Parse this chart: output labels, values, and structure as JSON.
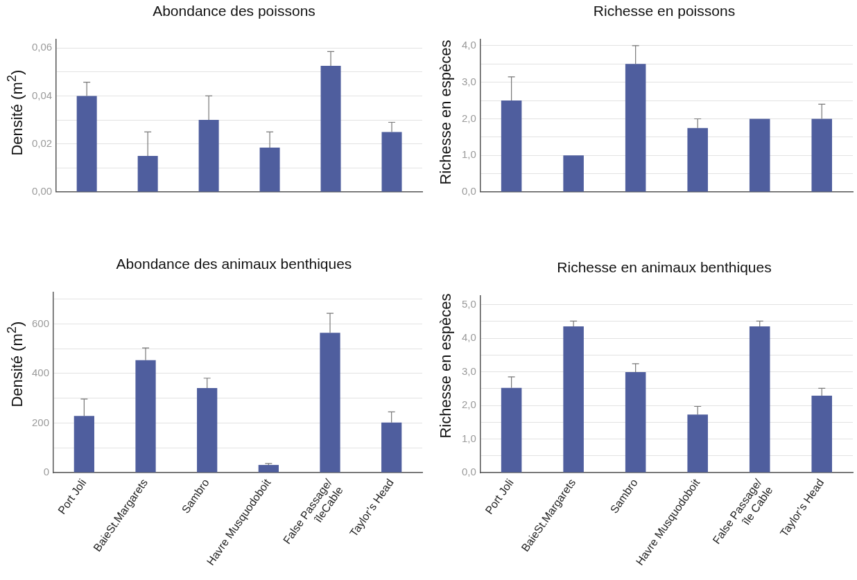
{
  "chart_data": [
    {
      "type": "bar",
      "title": "Abondance des poissons",
      "ylabel": "Densité (m$^{2}$)",
      "categories": [
        null,
        null,
        null,
        null,
        null,
        null
      ],
      "color": "#4f5e9e",
      "values": [
        0.04,
        0.015,
        0.03,
        0.0185,
        0.0525,
        0.025
      ],
      "errors": [
        [
          0.04,
          0.0457
        ],
        [
          0.015,
          0.025
        ],
        [
          0.03,
          0.04
        ],
        [
          0.0185,
          0.025
        ],
        [
          0.0525,
          0.0585
        ],
        [
          0.025,
          0.029
        ]
      ],
      "ylim": [
        0,
        0.0635
      ],
      "yticks": [
        {
          "value": 0,
          "label": "0,00"
        },
        {
          "value": 0.01,
          "label": null
        },
        {
          "value": 0.02,
          "label": "0,02"
        },
        {
          "value": 0.03,
          "label": null
        },
        {
          "value": 0.04,
          "label": "0,04"
        },
        {
          "value": 0.05,
          "label": null
        },
        {
          "value": 0.06,
          "label": "0,06"
        }
      ],
      "grid": "y"
    },
    {
      "type": "bar",
      "title": "Richesse en poissons",
      "ylabel": "Richesse en espèces",
      "categories": [
        null,
        null,
        null,
        null,
        null,
        null
      ],
      "color": "#4f5e9e",
      "values": [
        2.5,
        1.0,
        3.5,
        1.75,
        2.0,
        2.0
      ],
      "errors": [
        [
          2.5,
          3.15
        ],
        null,
        [
          3.5,
          4.0
        ],
        [
          1.75,
          2.0
        ],
        null,
        [
          2.0,
          2.4
        ]
      ],
      "ylim": [
        0,
        4.17
      ],
      "yticks": [
        {
          "value": 0,
          "label": "0,0"
        },
        {
          "value": 0.5,
          "label": null
        },
        {
          "value": 1,
          "label": "1,0"
        },
        {
          "value": 1.5,
          "label": null
        },
        {
          "value": 2,
          "label": "2,0"
        },
        {
          "value": 2.5,
          "label": null
        },
        {
          "value": 3,
          "label": "3,0"
        },
        {
          "value": 3.5,
          "label": null
        },
        {
          "value": 4,
          "label": "4,0"
        }
      ],
      "grid": "y"
    },
    {
      "type": "bar",
      "title": "Abondance des animaux benthiques",
      "ylabel": "Densité (m$^{2}$)",
      "categories": [
        "Port Joli",
        "BaieSt.Margarets",
        "Sambro",
        "Havre Musquodoboit",
        "False Passage/\nîleCable",
        "Taylor’s Head"
      ],
      "color": "#4f5e9e",
      "values": [
        229,
        454,
        341,
        31,
        564,
        202
      ],
      "errors": [
        [
          229,
          297
        ],
        [
          454,
          503
        ],
        [
          341,
          381
        ],
        [
          31,
          37
        ],
        [
          564,
          643
        ],
        [
          202,
          245
        ]
      ],
      "ylim": [
        0,
        727
      ],
      "yticks": [
        {
          "value": 0,
          "label": "0"
        },
        {
          "value": 100,
          "label": null
        },
        {
          "value": 200,
          "label": "200"
        },
        {
          "value": 300,
          "label": null
        },
        {
          "value": 400,
          "label": "400"
        },
        {
          "value": 500,
          "label": null
        },
        {
          "value": 600,
          "label": "600"
        },
        {
          "value": 700,
          "label": null
        }
      ],
      "grid": "y"
    },
    {
      "type": "bar",
      "title": "Richesse en animaux benthiques",
      "ylabel": "Richesse en espèces",
      "categories": [
        "Port Joli",
        "BaieSt.Margarets",
        "Sambro",
        "Havre Musquodoboit",
        "False Passage/\nîle Cable",
        "Taylor’s Head"
      ],
      "color": "#4f5e9e",
      "values": [
        2.52,
        4.35,
        2.99,
        1.73,
        4.35,
        2.29
      ],
      "errors": [
        [
          2.52,
          2.85
        ],
        [
          4.35,
          4.51
        ],
        [
          2.99,
          3.24
        ],
        [
          1.73,
          1.97
        ],
        [
          4.35,
          4.51
        ],
        [
          2.29,
          2.51
        ]
      ],
      "ylim": [
        0,
        5.26
      ],
      "yticks": [
        {
          "value": 0,
          "label": "0,0"
        },
        {
          "value": 0.5,
          "label": null
        },
        {
          "value": 1,
          "label": "1,0"
        },
        {
          "value": 1.5,
          "label": null
        },
        {
          "value": 2,
          "label": "2,0"
        },
        {
          "value": 2.5,
          "label": null
        },
        {
          "value": 3,
          "label": "3,0"
        },
        {
          "value": 3.5,
          "label": null
        },
        {
          "value": 4,
          "label": "4,0"
        },
        {
          "value": 4.5,
          "label": null
        },
        {
          "value": 5,
          "label": "5,0"
        }
      ],
      "grid": "y"
    }
  ]
}
